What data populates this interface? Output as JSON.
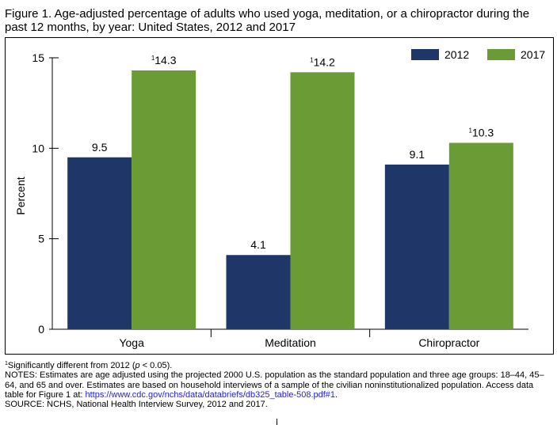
{
  "title": "Figure 1. Age-adjusted percentage of adults who used yoga, meditation, or a chiropractor during the past 12 months, by year: United States, 2012 and 2017",
  "chart_data": {
    "type": "bar",
    "categories": [
      "Yoga",
      "Meditation",
      "Chiropractor"
    ],
    "series": [
      {
        "name": "2012",
        "values": [
          9.5,
          4.1,
          9.1
        ],
        "color": "#1f3768",
        "labels": [
          "9.5",
          "4.1",
          "9.1"
        ],
        "marks": [
          "",
          "",
          ""
        ]
      },
      {
        "name": "2017",
        "values": [
          14.3,
          14.2,
          10.3
        ],
        "color": "#6b9b34",
        "labels": [
          "14.3",
          "14.2",
          "10.3"
        ],
        "marks": [
          "1",
          "1",
          "1"
        ]
      }
    ],
    "ylabel": "Percent",
    "ylim": [
      0,
      15
    ],
    "yticks": [
      0,
      5,
      10,
      15
    ],
    "legend": "top-right",
    "grid": false
  },
  "notes": {
    "footnote_mark": "1",
    "footnote_pre": "Significantly different from 2012 (",
    "footnote_p": "p",
    "footnote_post": " < 0.05).",
    "notes_text": "NOTES: Estimates are age adjusted using the projected 2000 U.S. population as the standard population and three age groups: 18–44, 45–64, and 65 and over. Estimates are based on household interviews of a sample of the civilian noninstitutionalized population. Access data table for Figure 1 at: ",
    "notes_link": "https://www.cdc.gov/nchs/data/databriefs/db325_table-508.pdf#1",
    "notes_end": ".",
    "source": "SOURCE: NCHS, National Health Interview Survey, 2012 and 2017."
  }
}
